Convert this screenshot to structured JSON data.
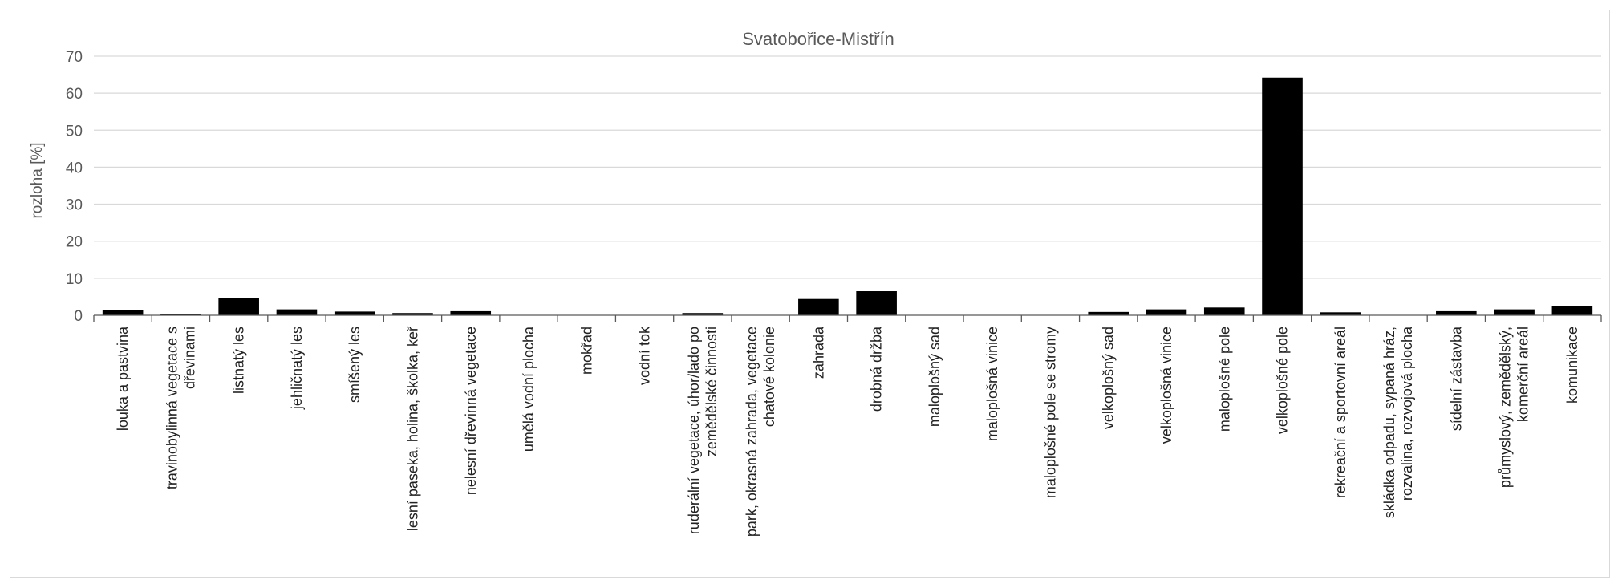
{
  "chart_data": {
    "type": "bar",
    "title": "Svatobořice-Mistřín",
    "ylabel": "rozloha [%]",
    "xlabel": "",
    "ylim": [
      0,
      70
    ],
    "yticks": [
      0,
      10,
      20,
      30,
      40,
      50,
      60,
      70
    ],
    "grid": true,
    "legend": "none",
    "bar_color": "#000000",
    "categories": [
      [
        "louka a pastvina"
      ],
      [
        "travinobylinná vegetace s",
        "dřevinami"
      ],
      [
        "listnatý les"
      ],
      [
        "jehličnatý les"
      ],
      [
        "smíšený les"
      ],
      [
        "lesní paseka, holina, školka, keř"
      ],
      [
        "nelesní dřevinná vegetace"
      ],
      [
        "umělá vodní plocha"
      ],
      [
        "mokřad"
      ],
      [
        "vodní tok"
      ],
      [
        "ruderální vegetace, úhor/lado po",
        "zemědělské činnosti"
      ],
      [
        "park, okrasná zahrada, vegetace",
        "chatové kolonie"
      ],
      [
        "zahrada"
      ],
      [
        "drobná držba"
      ],
      [
        "maloplošný sad"
      ],
      [
        "maloplošná vinice"
      ],
      [
        "maloplošné pole se stromy"
      ],
      [
        "velkoplošný sad"
      ],
      [
        "velkoplošná vinice"
      ],
      [
        "maloplošné pole"
      ],
      [
        "velkoplošné pole"
      ],
      [
        "rekreační a sportovní areál"
      ],
      [
        "skládka odpadu, sypaná hráz,",
        "rozvalina, rozvojová plocha"
      ],
      [
        "sídelní zástavba"
      ],
      [
        "průmyslový, zemědělský,",
        "komerční areál"
      ],
      [
        "komunikace"
      ]
    ],
    "values": [
      1.3,
      0.4,
      4.7,
      1.6,
      1.0,
      0.6,
      1.1,
      0.0,
      0.0,
      0.0,
      0.6,
      0.0,
      4.4,
      6.5,
      0.0,
      0.0,
      0.0,
      0.9,
      1.6,
      2.1,
      64.2,
      0.8,
      0.0,
      1.1,
      1.6,
      2.4
    ]
  }
}
